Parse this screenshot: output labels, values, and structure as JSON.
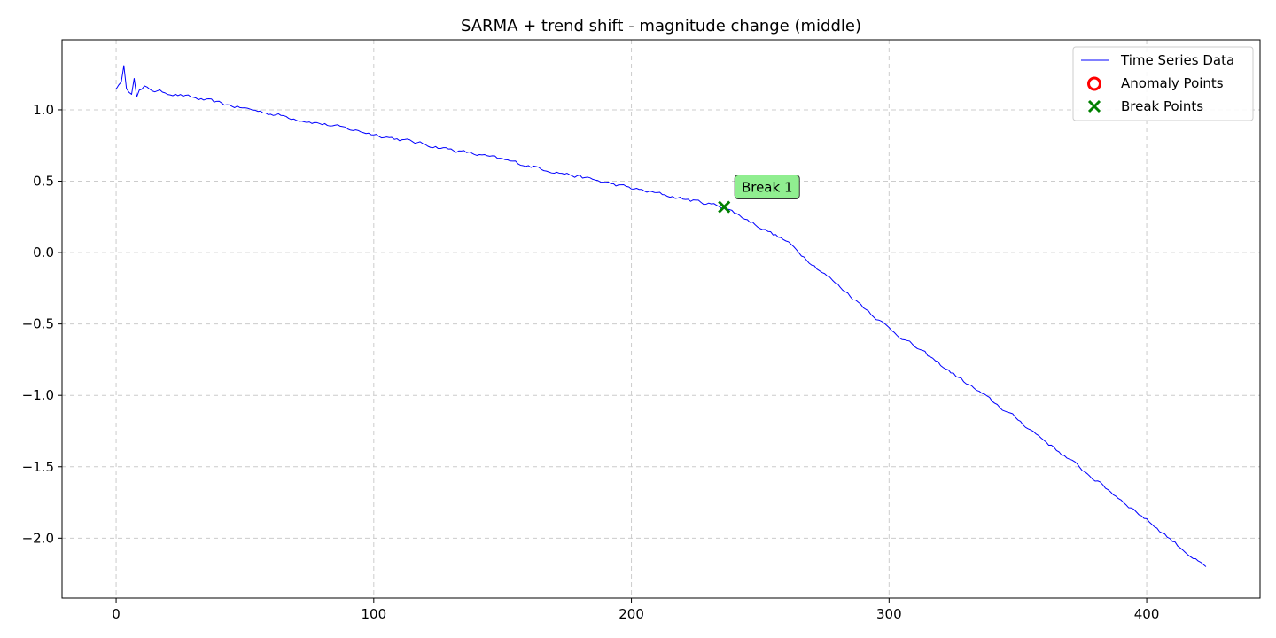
{
  "chart_data": {
    "type": "line",
    "title": "SARMA + trend shift - magnitude change (middle)",
    "xlabel": "",
    "ylabel": "",
    "xlim": [
      -21,
      444
    ],
    "ylim": [
      -2.42,
      1.49
    ],
    "x_ticks": [
      0,
      100,
      200,
      300,
      400
    ],
    "x_tick_labels": [
      "0",
      "100",
      "200",
      "300",
      "400"
    ],
    "y_ticks": [
      1.0,
      0.5,
      0.0,
      -0.5,
      -1.0,
      -1.5,
      -2.0
    ],
    "y_tick_labels": [
      "1.0",
      "0.5",
      "0.0",
      "−0.5",
      "−1.0",
      "−1.5",
      "−2.0"
    ],
    "grid": true,
    "legend": {
      "placement": "upper-right",
      "entries": [
        {
          "label": "Time Series Data",
          "marker": "line",
          "color": "#0000ff"
        },
        {
          "label": "Anomaly Points",
          "marker": "circle-open",
          "color": "#ff0000"
        },
        {
          "label": "Break Points",
          "marker": "x",
          "color": "#008000"
        }
      ]
    },
    "series": [
      {
        "name": "Time Series Data",
        "color": "#0000ff",
        "x_start": 0,
        "x_end": 423,
        "anchors": [
          {
            "x": 0,
            "y": 1.17
          },
          {
            "x": 20,
            "y": 1.12
          },
          {
            "x": 50,
            "y": 1.01
          },
          {
            "x": 100,
            "y": 0.83
          },
          {
            "x": 150,
            "y": 0.65
          },
          {
            "x": 200,
            "y": 0.45
          },
          {
            "x": 236,
            "y": 0.32
          },
          {
            "x": 260,
            "y": 0.08
          },
          {
            "x": 300,
            "y": -0.53
          },
          {
            "x": 350,
            "y": -1.17
          },
          {
            "x": 400,
            "y": -1.87
          },
          {
            "x": 423,
            "y": -2.21
          }
        ],
        "spikes": [
          {
            "x": 3,
            "y": 1.31
          },
          {
            "x": 7,
            "y": 1.22
          },
          {
            "x": 8,
            "y": 1.09
          }
        ]
      }
    ],
    "anomaly_points": [],
    "break_points": [
      {
        "x": 236,
        "y": 0.32,
        "label": "Break 1"
      }
    ],
    "colors": {
      "line": "#0000ff",
      "anomaly": "#ff0000",
      "break": "#008000",
      "annotation_fill": "#90ee90",
      "grid": "#cccccc"
    }
  }
}
